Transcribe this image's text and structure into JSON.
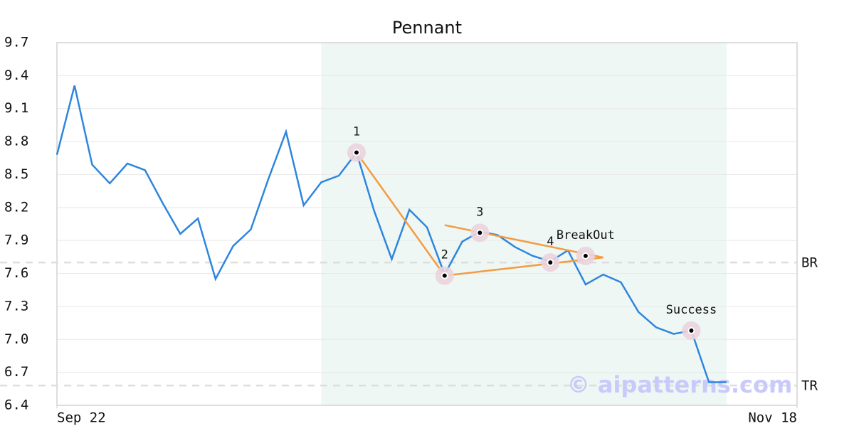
{
  "chart_data": {
    "type": "line",
    "title": "Pennant",
    "x": [
      0,
      1,
      2,
      3,
      4,
      5,
      6,
      7,
      8,
      9,
      10,
      11,
      12,
      13,
      14,
      15,
      16,
      17,
      18,
      19,
      20,
      21,
      22,
      23,
      24,
      25,
      26,
      27,
      28,
      29,
      30,
      31,
      32,
      33,
      34,
      35,
      36,
      37,
      38
    ],
    "values": [
      8.68,
      9.31,
      8.59,
      8.42,
      8.6,
      8.54,
      8.24,
      7.96,
      8.1,
      7.55,
      7.85,
      8.0,
      8.46,
      8.89,
      8.22,
      8.43,
      8.49,
      8.7,
      8.17,
      7.73,
      8.18,
      8.02,
      7.59,
      7.89,
      7.98,
      7.95,
      7.84,
      7.76,
      7.71,
      7.81,
      7.5,
      7.59,
      7.52,
      7.25,
      7.11,
      7.05,
      7.08,
      6.61,
      6.61
    ],
    "color": "#2e86de",
    "xlim": [
      0,
      42
    ],
    "xticks": [
      {
        "value": 0,
        "label": "Sep 22"
      },
      {
        "value": 42,
        "label": "Nov 18"
      }
    ],
    "ylim": [
      6.4,
      9.7
    ],
    "yticks": [
      6.4,
      6.7,
      {
        "value": 7,
        "label": "7.0"
      },
      7.3,
      7.6,
      7.9,
      8.2,
      8.5,
      8.8,
      9.1,
      9.4,
      9.7
    ],
    "grid": true,
    "shaded_region": {
      "x": [
        15,
        38
      ],
      "color": "#eef7f3"
    },
    "pattern_lines": [
      {
        "x": [
          17,
          22
        ],
        "y": [
          8.7,
          7.58
        ],
        "color": "#f39c42"
      },
      {
        "x": [
          22,
          31
        ],
        "y": [
          7.58,
          7.745
        ],
        "color": "#f39c42"
      },
      {
        "x": [
          22,
          31
        ],
        "y": [
          8.04,
          7.745
        ],
        "color": "#f39c42"
      }
    ],
    "points": [
      {
        "label": "1",
        "x": 17,
        "y": 8.7
      },
      {
        "label": "2",
        "x": 22,
        "y": 7.58
      },
      {
        "label": "3",
        "x": 24,
        "y": 7.97
      },
      {
        "label": "4",
        "x": 28,
        "y": 7.7
      },
      {
        "label": "BreakOut",
        "x": 30,
        "y": 7.76
      },
      {
        "label": "Success",
        "x": 36,
        "y": 7.08
      }
    ],
    "hlines": [
      {
        "label": "BR",
        "value": 7.7
      },
      {
        "label": "TR",
        "value": 6.58
      }
    ],
    "watermark": "© aipatterns.com"
  }
}
